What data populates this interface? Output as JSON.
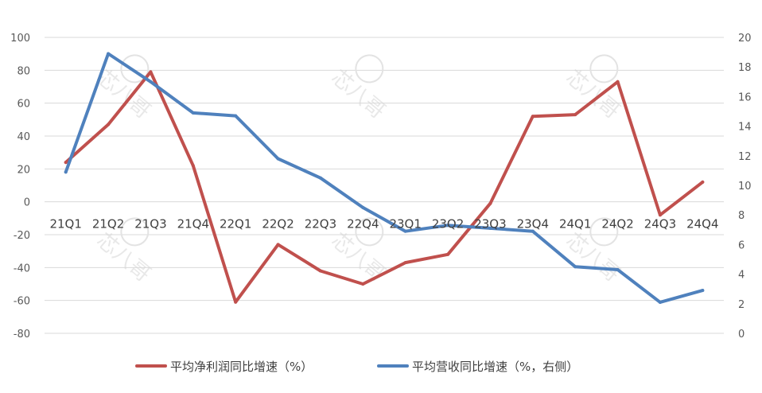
{
  "chart_data": {
    "type": "line",
    "categories": [
      "21Q1",
      "21Q2",
      "21Q3",
      "21Q4",
      "22Q1",
      "22Q2",
      "22Q3",
      "22Q4",
      "23Q1",
      "23Q2",
      "23Q3",
      "23Q4",
      "24Q1",
      "24Q2",
      "24Q3",
      "24Q4"
    ],
    "series": [
      {
        "name": "平均净利润同比增速（%）",
        "axis": "left",
        "color": "#c0504d",
        "values": [
          24,
          47,
          79,
          22,
          -61,
          -26,
          -42,
          -50,
          -37,
          -32,
          -1,
          52,
          53,
          73,
          -8,
          12
        ]
      },
      {
        "name": "平均营收同比增速（%，右侧）",
        "axis": "right",
        "color": "#4f81bd",
        "values": [
          10.9,
          18.9,
          17.0,
          14.9,
          14.7,
          11.8,
          10.5,
          8.5,
          6.9,
          7.3,
          7.1,
          6.9,
          4.5,
          4.3,
          2.1,
          2.9
        ]
      }
    ],
    "y_left": {
      "min": -80,
      "max": 100,
      "step": 20
    },
    "y_right": {
      "min": 0,
      "max": 20,
      "step": 2
    },
    "grid": true,
    "legend_position": "bottom",
    "watermark": "芯八哥"
  }
}
